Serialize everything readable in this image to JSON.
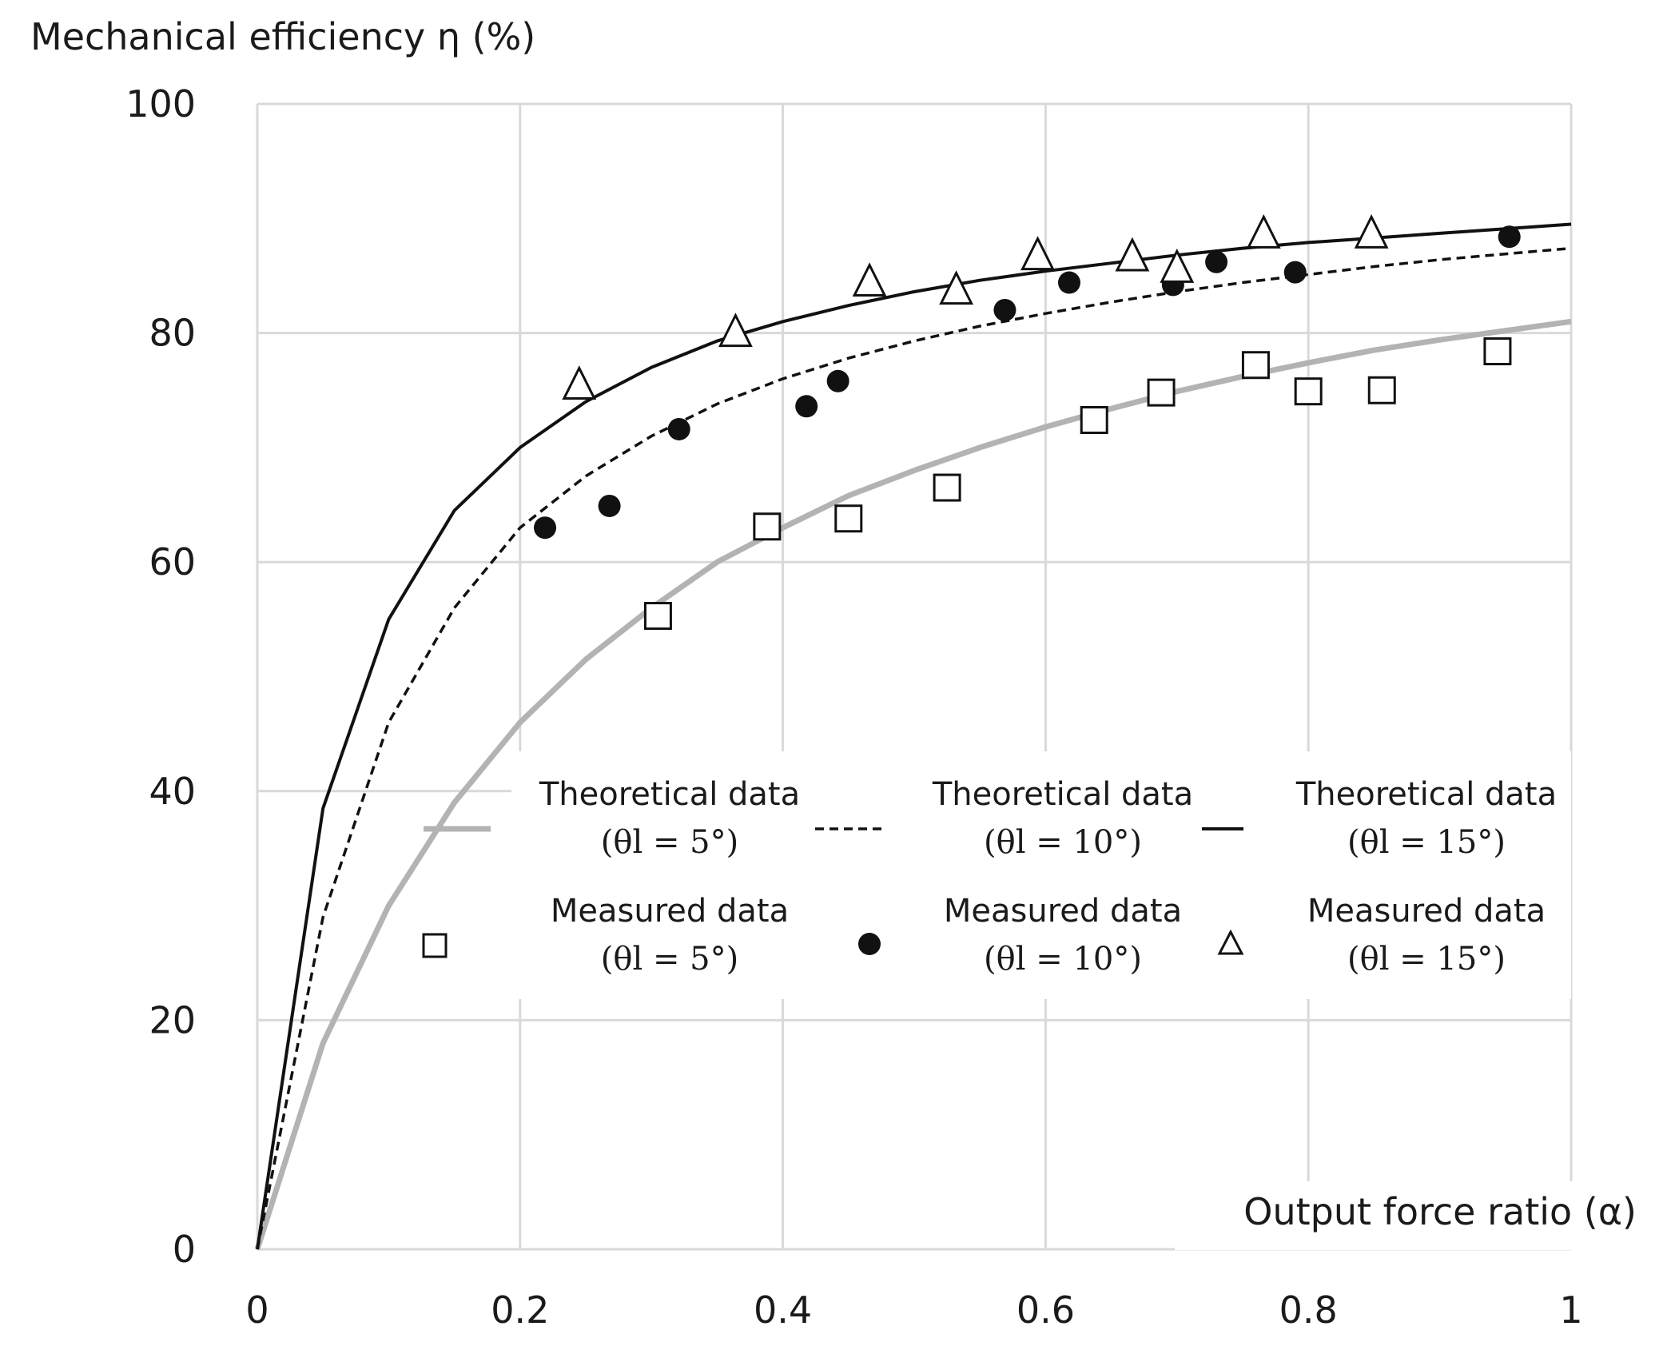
{
  "chart_data": {
    "type": "line",
    "ylabel": "Mechanical efficiency η (%)",
    "xlabel": "Output force ratio (α)",
    "xlim": [
      0,
      1
    ],
    "ylim": [
      0,
      100
    ],
    "x_ticks": [
      "0",
      "0.2",
      "0.4",
      "0.6",
      "0.8",
      "1"
    ],
    "y_ticks": [
      "0",
      "20",
      "40",
      "60",
      "80",
      "100"
    ],
    "grid": true,
    "series": [
      {
        "name": "Theoretical data (θl = 5°)",
        "kind": "line",
        "style": "solid-gray",
        "color": "#b3b3b3",
        "x": [
          0,
          0.05,
          0.1,
          0.15,
          0.2,
          0.25,
          0.3,
          0.35,
          0.4,
          0.45,
          0.5,
          0.55,
          0.6,
          0.65,
          0.7,
          0.75,
          0.8,
          0.85,
          0.9,
          0.95,
          1.0
        ],
        "y": [
          0,
          18,
          30,
          39,
          46,
          51.5,
          56,
          60,
          63,
          65.8,
          68,
          70,
          71.8,
          73.4,
          74.9,
          76.2,
          77.4,
          78.5,
          79.4,
          80.2,
          81
        ]
      },
      {
        "name": "Theoretical data (θl = 10°)",
        "kind": "line",
        "style": "dashed-black",
        "color": "#111111",
        "x": [
          0,
          0.05,
          0.1,
          0.15,
          0.2,
          0.25,
          0.3,
          0.35,
          0.4,
          0.45,
          0.5,
          0.55,
          0.6,
          0.65,
          0.7,
          0.75,
          0.8,
          0.85,
          0.9,
          0.95,
          1.0
        ],
        "y": [
          0,
          29,
          46,
          56,
          63,
          67.5,
          71,
          73.8,
          76,
          77.8,
          79.3,
          80.6,
          81.7,
          82.7,
          83.6,
          84.4,
          85.1,
          85.8,
          86.4,
          86.9,
          87.4
        ]
      },
      {
        "name": "Theoretical data (θl = 15°)",
        "kind": "line",
        "style": "solid-black",
        "color": "#111111",
        "x": [
          0,
          0.05,
          0.1,
          0.15,
          0.2,
          0.25,
          0.3,
          0.35,
          0.4,
          0.45,
          0.5,
          0.55,
          0.6,
          0.65,
          0.7,
          0.75,
          0.8,
          0.85,
          0.9,
          0.95,
          1.0
        ],
        "y": [
          0,
          38.5,
          55,
          64.5,
          70,
          74,
          77,
          79.3,
          81,
          82.4,
          83.6,
          84.6,
          85.4,
          86.1,
          86.8,
          87.4,
          87.9,
          88.3,
          88.7,
          89.1,
          89.5
        ]
      },
      {
        "name": "Measured data (θl = 5°)",
        "kind": "scatter",
        "marker": "square",
        "x": [
          0.305,
          0.388,
          0.45,
          0.525,
          0.637,
          0.688,
          0.76,
          0.8,
          0.856,
          0.944
        ],
        "y": [
          55.3,
          63.1,
          63.8,
          66.5,
          72.4,
          74.8,
          77.2,
          74.9,
          75.0,
          78.4
        ]
      },
      {
        "name": "Measured data (θl = 10°)",
        "kind": "scatter",
        "marker": "circle",
        "x": [
          0.219,
          0.268,
          0.321,
          0.418,
          0.442,
          0.569,
          0.618,
          0.697,
          0.73,
          0.79,
          0.953
        ],
        "y": [
          63.0,
          64.9,
          71.6,
          73.6,
          75.8,
          82.0,
          84.4,
          84.2,
          86.2,
          85.3,
          88.4
        ]
      },
      {
        "name": "Measured data (θl = 15°)",
        "kind": "scatter",
        "marker": "triangle",
        "x": [
          0.245,
          0.364,
          0.466,
          0.532,
          0.594,
          0.666,
          0.7,
          0.766,
          0.848
        ],
        "y": [
          75.4,
          80.0,
          84.4,
          83.7,
          86.7,
          86.6,
          85.6,
          88.6,
          88.6
        ]
      }
    ],
    "legend": {
      "placement": "center-right",
      "columns": 3,
      "entries": [
        {
          "label": "Theoretical data",
          "sub": "(θl = 5°)",
          "series": 0
        },
        {
          "label": "Theoretical data",
          "sub": "(θl = 10°)",
          "series": 1
        },
        {
          "label": "Theoretical data",
          "sub": "(θl = 15°)",
          "series": 2
        },
        {
          "label": "Measured data",
          "sub": "(θl = 5°)",
          "series": 3
        },
        {
          "label": "Measured data",
          "sub": "(θl = 10°)",
          "series": 4
        },
        {
          "label": "Measured data",
          "sub": "(θl = 15°)",
          "series": 5
        }
      ]
    }
  }
}
